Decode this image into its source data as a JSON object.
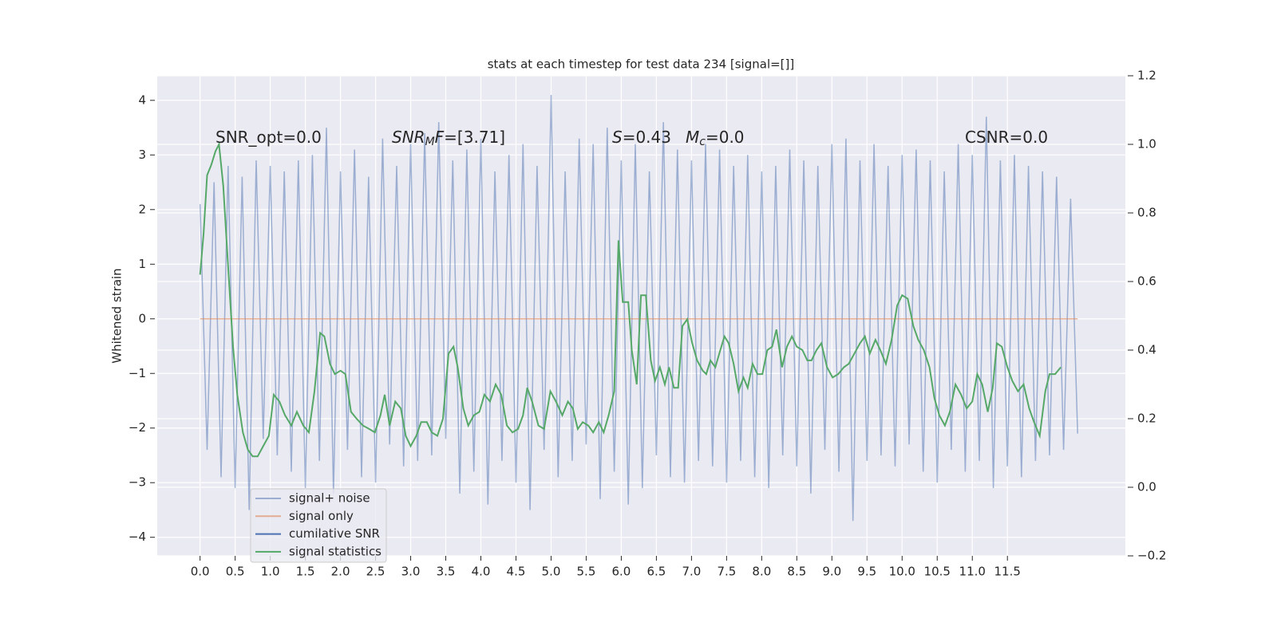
{
  "chart_data": {
    "type": "line",
    "title": "stats at each timestep for test data 234 [signal=[]]",
    "ylabel": "Whitened strain",
    "xlim": [
      -0.61,
      13.18
    ],
    "ylim": [
      -4.34,
      4.45
    ],
    "y2lim": [
      -0.2,
      1.2
    ],
    "xticks": [
      {
        "value": 0,
        "label": "0.0"
      },
      0.5,
      {
        "value": 1,
        "label": "1.0"
      },
      1.5,
      {
        "value": 2,
        "label": "2.0"
      },
      2.5,
      {
        "value": 3,
        "label": "3.0"
      },
      3.5,
      {
        "value": 4,
        "label": "4.0"
      },
      4.5,
      {
        "value": 5,
        "label": "5.0"
      },
      5.5,
      {
        "value": 6,
        "label": "6.0"
      },
      6.5,
      {
        "value": 7,
        "label": "7.0"
      },
      7.5,
      {
        "value": 8,
        "label": "8.0"
      },
      8.5,
      {
        "value": 9,
        "label": "9.0"
      },
      9.5,
      {
        "value": 10,
        "label": "10.0"
      },
      10.5,
      {
        "value": 11,
        "label": "11.0"
      },
      11.5
    ],
    "yticks": [
      {
        "value": -4,
        "label": "−4"
      },
      {
        "value": -3,
        "label": "−3"
      },
      {
        "value": -2,
        "label": "−2"
      },
      {
        "value": -1,
        "label": "−1"
      },
      0,
      1,
      2,
      3,
      4
    ],
    "y2ticks": [
      {
        "value": -0.2,
        "label": "−0.2"
      },
      {
        "value": 0,
        "label": "0.0"
      },
      0.2,
      0.4,
      0.6,
      0.8,
      {
        "value": 1,
        "label": "1.0"
      },
      1.2
    ],
    "grid": true,
    "legend": "lower left",
    "annotations": [
      {
        "parts": [
          {
            "text": "SNR_opt=0.0"
          }
        ]
      },
      {
        "parts": [
          {
            "text": "SNR",
            "style": "italic"
          },
          {
            "text": "M",
            "style": "sub"
          },
          {
            "text": "F",
            "style": "italic"
          },
          {
            "text": "=[3.71]"
          }
        ]
      },
      {
        "parts": [
          {
            "text": "S",
            "style": "italic"
          },
          {
            "text": "=0.43"
          }
        ]
      },
      {
        "parts": [
          {
            "text": "M",
            "style": "italic"
          },
          {
            "text": "c",
            "style": "sub"
          },
          {
            "text": "=0.0"
          }
        ]
      },
      {
        "parts": [
          {
            "text": "CSNR=0.0"
          }
        ]
      }
    ],
    "series": [
      {
        "name": "signal+ noise",
        "color": "#4c72b0",
        "alpha": 0.5,
        "x": [
          0.0,
          0.1,
          0.2,
          0.3,
          0.4,
          0.5,
          0.6,
          0.7,
          0.8,
          0.9,
          1.0,
          1.1,
          1.2,
          1.3,
          1.4,
          1.5,
          1.6,
          1.7,
          1.8,
          1.9,
          2.0,
          2.1,
          2.2,
          2.3,
          2.4,
          2.5,
          2.6,
          2.7,
          2.8,
          2.9,
          3.0,
          3.1,
          3.2,
          3.3,
          3.4,
          3.5,
          3.6,
          3.7,
          3.8,
          3.9,
          4.0,
          4.1,
          4.2,
          4.3,
          4.4,
          4.5,
          4.6,
          4.7,
          4.8,
          4.9,
          5.0,
          5.1,
          5.2,
          5.3,
          5.4,
          5.5,
          5.6,
          5.7,
          5.8,
          5.9,
          6.0,
          6.1,
          6.2,
          6.3,
          6.4,
          6.5,
          6.6,
          6.7,
          6.8,
          6.9,
          7.0,
          7.1,
          7.2,
          7.3,
          7.4,
          7.5,
          7.6,
          7.7,
          7.8,
          7.9,
          8.0,
          8.1,
          8.2,
          8.3,
          8.4,
          8.5,
          8.6,
          8.7,
          8.8,
          8.9,
          9.0,
          9.1,
          9.2,
          9.3,
          9.4,
          9.5,
          9.6,
          9.7,
          9.8,
          9.9,
          10.0,
          10.1,
          10.2,
          10.3,
          10.4,
          10.5,
          10.6,
          10.7,
          10.8,
          10.9,
          11.0,
          11.1,
          11.2,
          11.3,
          11.4,
          11.5,
          11.6,
          11.7,
          11.8,
          11.9,
          12.0,
          12.1,
          12.2,
          12.3,
          12.4,
          12.5
        ],
        "values": [
          2.1,
          -2.4,
          2.5,
          -2.9,
          2.8,
          -3.1,
          2.6,
          -3.5,
          2.9,
          -2.2,
          2.8,
          -2.5,
          2.7,
          -2.8,
          2.9,
          -3.1,
          3.0,
          -2.6,
          3.5,
          -3.2,
          2.7,
          -2.4,
          3.1,
          -2.9,
          2.6,
          -3.0,
          3.3,
          -2.3,
          2.8,
          -2.7,
          3.2,
          -2.6,
          3.4,
          -2.5,
          3.6,
          -2.2,
          2.9,
          -3.2,
          3.1,
          -2.8,
          3.3,
          -3.4,
          2.7,
          -2.6,
          3.0,
          -3.0,
          3.2,
          -3.5,
          2.8,
          -2.4,
          4.1,
          -2.9,
          2.7,
          -2.6,
          3.3,
          -2.3,
          3.2,
          -3.3,
          3.5,
          -2.8,
          2.9,
          -3.4,
          3.2,
          -3.1,
          2.7,
          -2.5,
          3.6,
          -2.9,
          3.1,
          -3.0,
          2.9,
          -2.6,
          3.2,
          -2.7,
          3.1,
          -3.0,
          2.8,
          -2.6,
          3.0,
          -2.9,
          2.7,
          -3.1,
          2.8,
          -2.5,
          3.1,
          -2.7,
          2.9,
          -3.2,
          2.8,
          -2.4,
          3.2,
          -2.8,
          3.3,
          -3.7,
          2.9,
          -2.6,
          3.2,
          -2.5,
          2.8,
          -2.7,
          3.0,
          -2.3,
          3.1,
          -2.8,
          2.9,
          -3.0,
          2.7,
          -2.4,
          3.2,
          -2.8,
          3.0,
          -2.6,
          3.7,
          -3.1,
          2.9,
          -2.7,
          3.0,
          -2.9,
          2.8,
          -2.6,
          2.7,
          -2.5,
          2.6,
          -2.4,
          2.2,
          -2.1
        ]
      },
      {
        "name": "signal only",
        "color": "#dd8452",
        "alpha": 0.6,
        "x": [
          0.0,
          12.5
        ],
        "values": [
          0,
          0
        ]
      },
      {
        "name": "cumilative SNR",
        "color": "#4c72b0",
        "x": [],
        "values": []
      },
      {
        "name": "signal statistics",
        "color": "#55a868",
        "axis": "y2",
        "x": [
          0.0,
          0.05,
          0.1,
          0.16,
          0.22,
          0.27,
          0.33,
          0.41,
          0.47,
          0.53,
          0.61,
          0.68,
          0.75,
          0.82,
          0.9,
          0.98,
          1.05,
          1.13,
          1.21,
          1.3,
          1.38,
          1.47,
          1.55,
          1.63,
          1.71,
          1.77,
          1.85,
          1.92,
          2.0,
          2.07,
          2.15,
          2.23,
          2.32,
          2.41,
          2.49,
          2.57,
          2.63,
          2.7,
          2.78,
          2.86,
          2.93,
          3.0,
          3.08,
          3.15,
          3.23,
          3.3,
          3.38,
          3.46,
          3.54,
          3.61,
          3.67,
          3.75,
          3.82,
          3.9,
          3.98,
          4.05,
          4.13,
          4.21,
          4.29,
          4.37,
          4.45,
          4.53,
          4.6,
          4.66,
          4.73,
          4.82,
          4.9,
          4.99,
          5.07,
          5.16,
          5.24,
          5.31,
          5.38,
          5.45,
          5.53,
          5.6,
          5.68,
          5.75,
          5.82,
          5.9,
          5.96,
          6.02,
          6.1,
          6.15,
          6.22,
          6.28,
          6.35,
          6.42,
          6.48,
          6.55,
          6.62,
          6.68,
          6.75,
          6.81,
          6.87,
          6.94,
          7.01,
          7.08,
          7.16,
          7.21,
          7.27,
          7.34,
          7.41,
          7.47,
          7.53,
          7.6,
          7.67,
          7.74,
          7.8,
          7.87,
          7.94,
          8.01,
          8.08,
          8.15,
          8.21,
          8.29,
          8.36,
          8.43,
          8.5,
          8.58,
          8.65,
          8.71,
          8.78,
          8.85,
          8.93,
          9.01,
          9.09,
          9.17,
          9.24,
          9.32,
          9.4,
          9.47,
          9.54,
          9.62,
          9.69,
          9.77,
          9.85,
          9.93,
          10.0,
          10.08,
          10.16,
          10.23,
          10.31,
          10.39,
          10.46,
          10.53,
          10.61,
          10.68,
          10.76,
          10.84,
          10.92,
          11.0,
          11.07,
          11.14,
          11.22,
          11.29,
          11.35,
          11.42,
          11.5,
          11.57,
          11.65,
          11.73,
          11.81,
          11.88,
          11.96,
          12.04,
          12.1,
          12.18,
          12.26
        ],
        "values": [
          0.62,
          0.74,
          0.91,
          0.94,
          0.98,
          1.0,
          0.88,
          0.61,
          0.41,
          0.27,
          0.16,
          0.11,
          0.09,
          0.09,
          0.12,
          0.15,
          0.27,
          0.25,
          0.21,
          0.18,
          0.22,
          0.18,
          0.16,
          0.28,
          0.45,
          0.44,
          0.36,
          0.33,
          0.34,
          0.33,
          0.22,
          0.2,
          0.18,
          0.17,
          0.16,
          0.21,
          0.27,
          0.18,
          0.25,
          0.23,
          0.15,
          0.12,
          0.15,
          0.19,
          0.19,
          0.16,
          0.15,
          0.2,
          0.39,
          0.41,
          0.35,
          0.23,
          0.18,
          0.21,
          0.22,
          0.27,
          0.25,
          0.3,
          0.27,
          0.18,
          0.16,
          0.17,
          0.21,
          0.29,
          0.25,
          0.18,
          0.17,
          0.28,
          0.25,
          0.21,
          0.25,
          0.23,
          0.17,
          0.19,
          0.18,
          0.16,
          0.19,
          0.16,
          0.21,
          0.28,
          0.72,
          0.54,
          0.54,
          0.4,
          0.3,
          0.56,
          0.56,
          0.37,
          0.31,
          0.35,
          0.3,
          0.35,
          0.29,
          0.29,
          0.47,
          0.49,
          0.42,
          0.37,
          0.34,
          0.33,
          0.37,
          0.35,
          0.4,
          0.44,
          0.42,
          0.36,
          0.28,
          0.32,
          0.29,
          0.36,
          0.33,
          0.33,
          0.4,
          0.41,
          0.46,
          0.35,
          0.41,
          0.44,
          0.41,
          0.4,
          0.37,
          0.37,
          0.4,
          0.42,
          0.35,
          0.32,
          0.33,
          0.35,
          0.36,
          0.39,
          0.42,
          0.44,
          0.39,
          0.43,
          0.4,
          0.36,
          0.43,
          0.53,
          0.56,
          0.55,
          0.47,
          0.43,
          0.4,
          0.35,
          0.26,
          0.21,
          0.18,
          0.22,
          0.3,
          0.27,
          0.23,
          0.25,
          0.33,
          0.3,
          0.22,
          0.29,
          0.42,
          0.41,
          0.35,
          0.31,
          0.28,
          0.3,
          0.23,
          0.19,
          0.15,
          0.28,
          0.33,
          0.33,
          0.35
        ]
      }
    ]
  }
}
